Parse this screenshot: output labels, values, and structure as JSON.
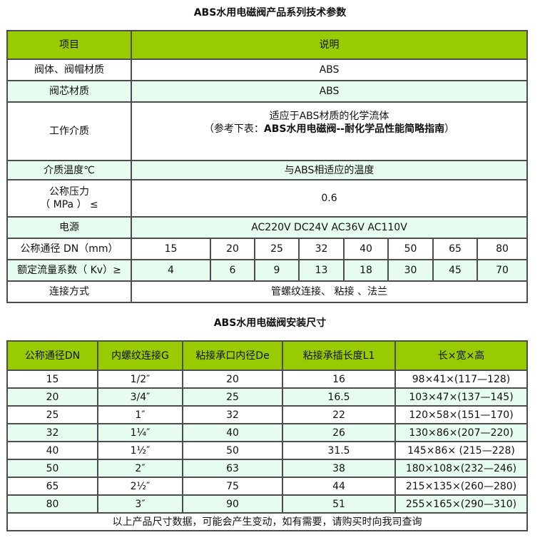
{
  "spec_table": {
    "title": "ABS水用电磁阀产品系列技术参数",
    "headers": [
      "项目",
      "说明"
    ],
    "rows": [
      {
        "label": "阀体、阀帽材质",
        "value": "ABS"
      },
      {
        "label": "阀芯材质",
        "value": "ABS"
      },
      {
        "label": "工作介质",
        "value_line1": "适应于ABS材质的化学流体",
        "value_line2_prefix": "（参考下表：",
        "value_line2_bold": "ABS水用电磁阀--耐化学品性能简略指南",
        "value_line2_suffix": "）"
      },
      {
        "label": "介质温度℃",
        "value": "与ABS相适应的温度"
      },
      {
        "label_line1": "公称压力",
        "label_line2": "（ MPa ） ≤",
        "value": "0.6"
      },
      {
        "label": "电源",
        "value": "AC220V DC24V AC36V AC110V"
      }
    ],
    "dn_row": {
      "label": "公称通径 DN（mm）",
      "values": [
        "15",
        "20",
        "25",
        "32",
        "40",
        "50",
        "65",
        "80"
      ]
    },
    "kv_row": {
      "label": "额定流量系数（ Kv）≥",
      "values": [
        "4",
        "6",
        "9",
        "13",
        "18",
        "30",
        "45",
        "70"
      ]
    },
    "connection_row": {
      "label": "连接方式",
      "value": "管螺纹连接、 粘接 、法兰"
    }
  },
  "size_table": {
    "title": "ABS水用电磁阀安装尺寸",
    "headers": [
      "公称通径DN",
      "内螺纹连接G",
      "粘接承口内径De",
      "粘接承插长度L1",
      "长×宽×高"
    ],
    "rows": [
      [
        "15",
        "1/2″",
        "20",
        "16",
        "98×41×(117—128)"
      ],
      [
        "20",
        "3/4″",
        "25",
        "16.5",
        "103×47×(137—145)"
      ],
      [
        "25",
        "1″",
        "32",
        "22",
        "120×58×(151—170)"
      ],
      [
        "32",
        "1¼″",
        "40",
        "26",
        "130×86×(207—220)"
      ],
      [
        "40",
        "1½″",
        "50",
        "31.5",
        "145×86× (215—228)"
      ],
      [
        "50",
        "2″",
        "63",
        "38",
        "180×108×(232—246)"
      ],
      [
        "65",
        "2½″",
        "75",
        "44",
        "215×135×(260—280)"
      ],
      [
        "80",
        "3″",
        "90",
        "51",
        "255×165×(290—310)"
      ]
    ],
    "footer": "以上产品尺寸数据，可能会产生变动，如有需要，请购买时向我司查询"
  },
  "colors": {
    "header_bg": "#99cc00",
    "alt_row_bg": "#e6fcef",
    "border": "#4d4d4d"
  }
}
